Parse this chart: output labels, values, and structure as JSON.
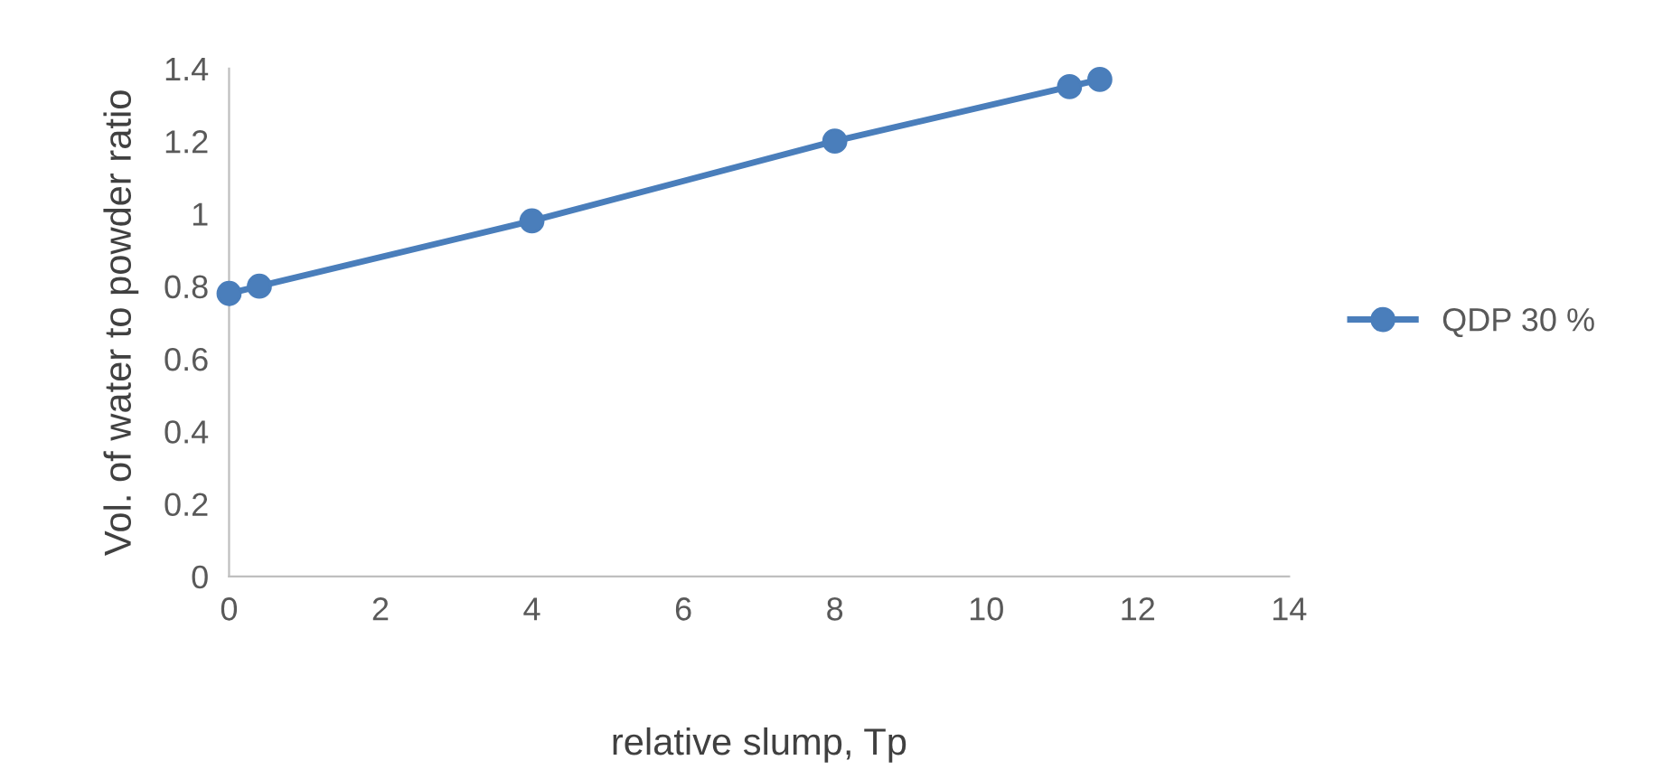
{
  "chart_data": {
    "type": "line",
    "xlabel": "relative slump, Tp",
    "ylabel": "Vol. of water to powder ratio",
    "x": [
      0,
      0.4,
      4,
      8,
      11.1,
      11.5
    ],
    "series": [
      {
        "name": "QDP 30 %",
        "color": "#4a7ebb",
        "values": [
          0.78,
          0.8,
          0.98,
          1.2,
          1.35,
          1.37
        ]
      }
    ],
    "xlim": [
      0,
      14
    ],
    "xticks": [
      0,
      2,
      4,
      6,
      8,
      10,
      12,
      14
    ],
    "ylim": [
      0,
      1.4
    ],
    "yticks": [
      0,
      0.2,
      0.4,
      0.6,
      0.8,
      1,
      1.2,
      1.4
    ],
    "grid": false,
    "legend": "right",
    "marker": "circle",
    "line_style": "solid"
  }
}
